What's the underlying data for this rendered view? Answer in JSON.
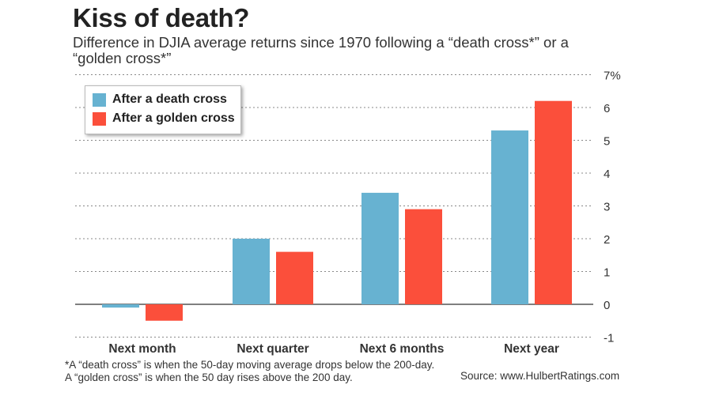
{
  "title": "Kiss of death?",
  "subtitle": "Difference in DJIA average returns since 1970 following a “death cross*” or a “golden cross*”",
  "footnote": "*A “death cross” is when the 50-day moving average drops below the 200-day. A “golden cross” is when the 50 day rises above the 200 day.",
  "source": "Source: www.HulbertRatings.com",
  "colors": {
    "death": "#67b2d1",
    "golden": "#fb4f3b",
    "grid": "#888888"
  },
  "chart_data": {
    "type": "bar",
    "title": "Kiss of death?",
    "categories": [
      "Next month",
      "Next quarter",
      "Next 6 months",
      "Next year"
    ],
    "series": [
      {
        "name": "After a death cross",
        "values": [
          -0.1,
          2.0,
          3.4,
          5.3
        ]
      },
      {
        "name": "After a golden cross",
        "values": [
          -0.5,
          1.6,
          2.9,
          6.2
        ]
      }
    ],
    "ylim": [
      -1,
      7
    ],
    "yticks": [
      -1,
      0,
      1,
      2,
      3,
      4,
      5,
      6,
      7
    ],
    "ytick_labels": [
      "-1",
      "0",
      "1",
      "2",
      "3",
      "4",
      "5",
      "6",
      "7%"
    ],
    "grid": true,
    "legend": "top-left",
    "xlabel": "",
    "ylabel": ""
  }
}
